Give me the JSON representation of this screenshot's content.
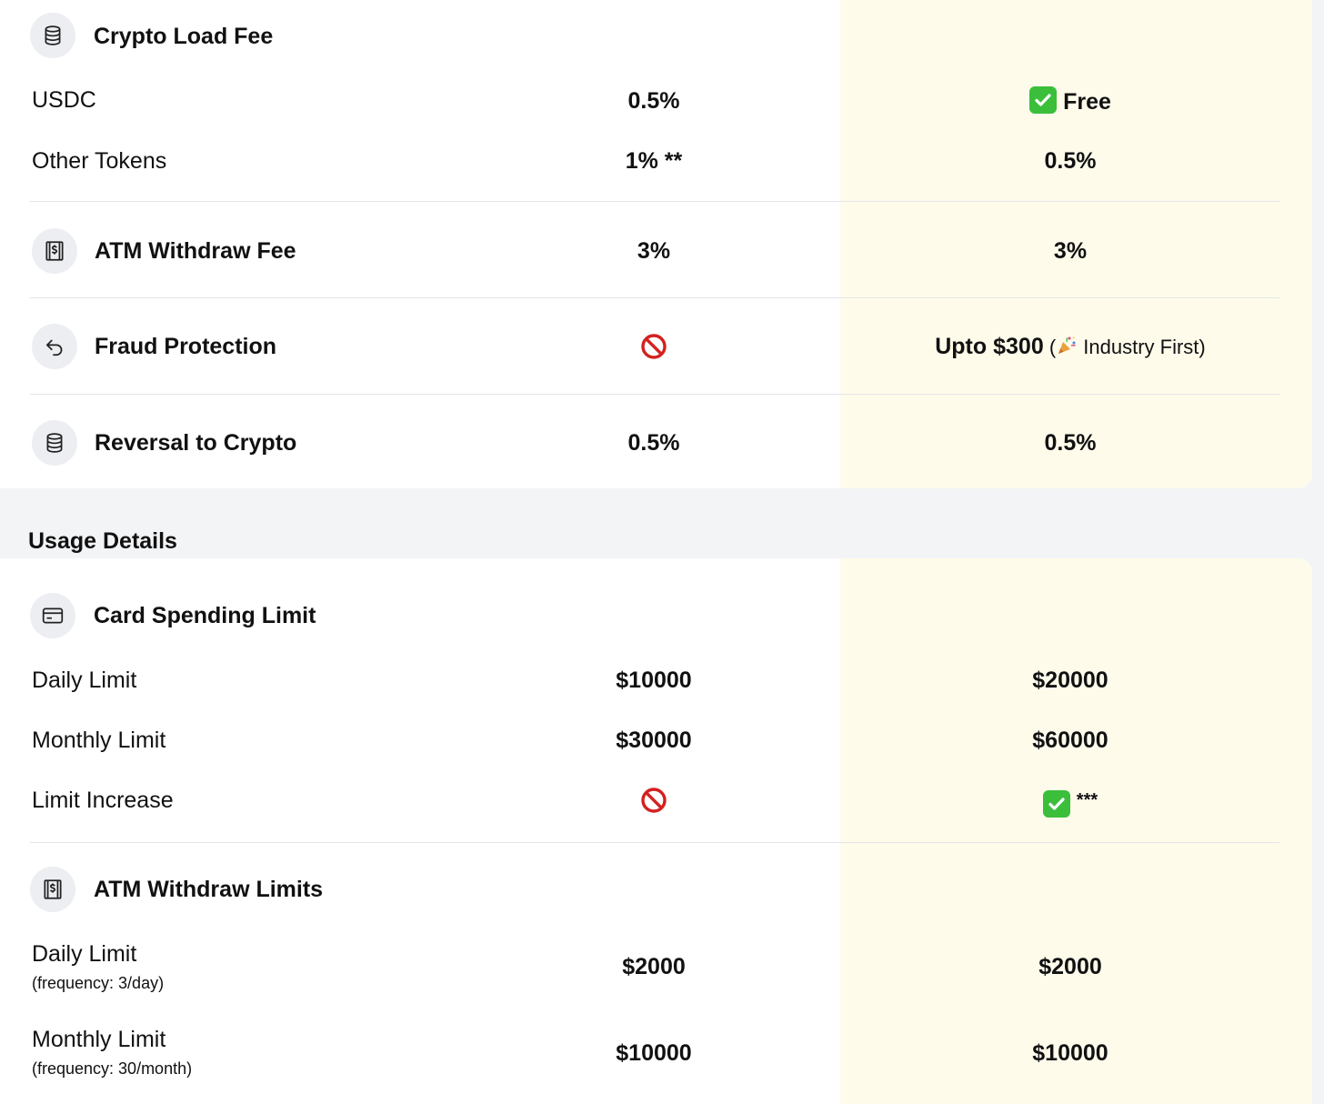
{
  "fees": {
    "crypto_load_fee": {
      "title": "Crypto Load Fee",
      "icon": "coins-stack-icon",
      "rows": [
        {
          "label": "USDC",
          "standard": "0.5%",
          "premium": "Free",
          "premium_icon": "check-mark-icon"
        },
        {
          "label": "Other Tokens",
          "standard": "1% **",
          "premium": "0.5%"
        }
      ]
    },
    "atm_withdraw_fee": {
      "title": "ATM Withdraw Fee",
      "icon": "atm-cash-icon",
      "standard": "3%",
      "premium": "3%"
    },
    "fraud_protection": {
      "title": "Fraud Protection",
      "icon": "undo-arrow-icon",
      "standard_icon": "prohibited-icon",
      "premium": "Upto $300",
      "premium_open": " (",
      "premium_note": " Industry First)",
      "premium_note_icon": "party-popper-icon"
    },
    "reversal_to_crypto": {
      "title": "Reversal to Crypto",
      "icon": "coins-stack-icon",
      "standard": "0.5%",
      "premium": "0.5%"
    }
  },
  "usage": {
    "heading": "Usage Details",
    "card_spending_limit": {
      "title": "Card Spending Limit",
      "icon": "credit-card-icon",
      "rows": [
        {
          "label": "Daily Limit",
          "standard": "$10000",
          "premium": "$20000"
        },
        {
          "label": "Monthly Limit",
          "standard": "$30000",
          "premium": "$60000"
        },
        {
          "label": "Limit Increase",
          "standard_icon": "prohibited-icon",
          "premium_icon": "check-mark-icon",
          "premium": "***"
        }
      ]
    },
    "atm_withdraw_limits": {
      "title": "ATM Withdraw Limits",
      "icon": "atm-cash-icon",
      "rows": [
        {
          "label": "Daily Limit",
          "sublabel": "(frequency: 3/day)",
          "standard": "$2000",
          "premium": "$2000"
        },
        {
          "label": "Monthly Limit",
          "sublabel": "(frequency: 30/month)",
          "standard": "$10000",
          "premium": "$10000"
        }
      ]
    }
  },
  "colors": {
    "page_background": "#f3f4f6",
    "card_background": "#ffffff",
    "highlight_column": "#fffbeb",
    "icon_circle": "#eceef2",
    "divider": "#e3e5e9",
    "check_green": "#3bbf3b",
    "prohibited_red": "#d42020"
  }
}
